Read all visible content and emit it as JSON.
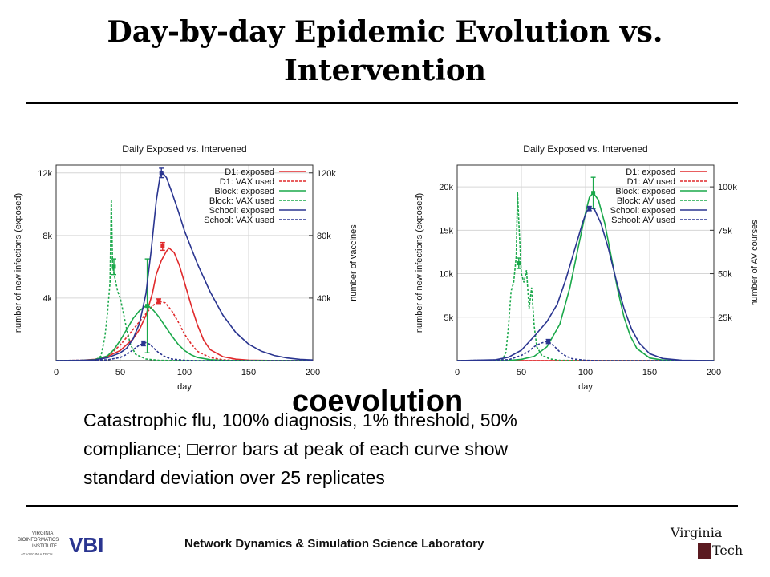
{
  "slide": {
    "title": "Day-by-day Epidemic Evolution vs. Intervention",
    "caption_line1": "Catastrophic flu, 100% diagnosis, 1% threshold, 50%",
    "caption_line2": "compliance; □error bars at peak of each curve show",
    "caption_line3": "standard deviation over 25 replicates",
    "overlay_word": "coevolution",
    "footer": "Network Dynamics & Simulation Science Laboratory",
    "logo_left_text": "VIRGINIA BIOINFORMATICS INSTITUTE AT VIRGINIA TECH",
    "logo_left_mark": "VBI",
    "logo_right_text_1": "Virginia",
    "logo_right_text_2": "Tech"
  },
  "colors": {
    "red": "#e0292b",
    "green": "#1aa84a",
    "blue": "#2a3590"
  },
  "chart_data": [
    {
      "type": "line",
      "title": "Daily Exposed vs. Intervened",
      "xlabel": "day",
      "ylabel": "number of new infections (exposed)",
      "y2label": "number of vaccines",
      "xlim": [
        0,
        200
      ],
      "ylim": [
        0,
        12500
      ],
      "y2lim": [
        0,
        125000
      ],
      "x_ticks": [
        0,
        50,
        100,
        150,
        200
      ],
      "y_ticks": [
        {
          "v": 4000,
          "l": "4k"
        },
        {
          "v": 8000,
          "l": "8k"
        },
        {
          "v": 12000,
          "l": "12k"
        }
      ],
      "y2_ticks": [
        {
          "v": 40000,
          "l": "40k"
        },
        {
          "v": 80000,
          "l": "80k"
        },
        {
          "v": 120000,
          "l": "120k"
        }
      ],
      "grid": true,
      "legend_position": "top-right",
      "series": [
        {
          "name": "D1: exposed",
          "color": "red",
          "dashed": false,
          "axis": "left",
          "points": [
            [
              0,
              0
            ],
            [
              20,
              20
            ],
            [
              30,
              80
            ],
            [
              40,
              260
            ],
            [
              50,
              650
            ],
            [
              60,
              1400
            ],
            [
              65,
              2000
            ],
            [
              70,
              2900
            ],
            [
              75,
              4300
            ],
            [
              78,
              5500
            ],
            [
              82,
              6400
            ],
            [
              86,
              7000
            ],
            [
              88,
              7200
            ],
            [
              92,
              6900
            ],
            [
              96,
              6100
            ],
            [
              100,
              5000
            ],
            [
              105,
              3600
            ],
            [
              110,
              2300
            ],
            [
              115,
              1300
            ],
            [
              120,
              700
            ],
            [
              130,
              250
            ],
            [
              140,
              90
            ],
            [
              150,
              30
            ],
            [
              170,
              5
            ],
            [
              200,
              0
            ]
          ],
          "error_bar": {
            "x": 83,
            "y": 7300,
            "sd": 250
          }
        },
        {
          "name": "D1: VAX used",
          "color": "red",
          "dashed": true,
          "axis": "right",
          "points": [
            [
              0,
              0
            ],
            [
              30,
              200
            ],
            [
              40,
              2500
            ],
            [
              50,
              10000
            ],
            [
              60,
              20000
            ],
            [
              70,
              30000
            ],
            [
              75,
              35000
            ],
            [
              80,
              38000
            ],
            [
              85,
              37000
            ],
            [
              90,
              32000
            ],
            [
              95,
              25000
            ],
            [
              100,
              17000
            ],
            [
              105,
              11000
            ],
            [
              110,
              6000
            ],
            [
              120,
              2000
            ],
            [
              130,
              500
            ],
            [
              140,
              100
            ],
            [
              160,
              0
            ],
            [
              200,
              0
            ]
          ],
          "error_bar": {
            "x": 80,
            "y": 38000,
            "sd": 1500
          }
        },
        {
          "name": "Block: exposed",
          "color": "green",
          "dashed": false,
          "axis": "left",
          "points": [
            [
              0,
              0
            ],
            [
              20,
              15
            ],
            [
              30,
              60
            ],
            [
              40,
              300
            ],
            [
              45,
              700
            ],
            [
              50,
              1300
            ],
            [
              55,
              2000
            ],
            [
              60,
              2700
            ],
            [
              65,
              3200
            ],
            [
              70,
              3500
            ],
            [
              72,
              3500
            ],
            [
              76,
              3200
            ],
            [
              80,
              2800
            ],
            [
              85,
              2200
            ],
            [
              90,
              1600
            ],
            [
              95,
              1050
            ],
            [
              100,
              650
            ],
            [
              105,
              380
            ],
            [
              110,
              200
            ],
            [
              120,
              60
            ],
            [
              130,
              15
            ],
            [
              150,
              0
            ],
            [
              200,
              0
            ]
          ],
          "error_bar": {
            "x": 71,
            "y": 3500,
            "sd": 3000
          }
        },
        {
          "name": "Block: VAX used",
          "color": "green",
          "dashed": true,
          "axis": "right",
          "points": [
            [
              0,
              0
            ],
            [
              30,
              0
            ],
            [
              35,
              3000
            ],
            [
              38,
              15000
            ],
            [
              40,
              30000
            ],
            [
              41,
              40000
            ],
            [
              42,
              50000
            ],
            [
              43,
              103000
            ],
            [
              44,
              60000
            ],
            [
              46,
              52000
            ],
            [
              48,
              44000
            ],
            [
              50,
              40000
            ],
            [
              52,
              32000
            ],
            [
              55,
              20000
            ],
            [
              58,
              10000
            ],
            [
              62,
              4000
            ],
            [
              70,
              1000
            ],
            [
              80,
              200
            ],
            [
              100,
              0
            ],
            [
              200,
              0
            ]
          ],
          "error_bar": {
            "x": 45,
            "y": 60000,
            "sd": 5000
          }
        },
        {
          "name": "School: exposed",
          "color": "blue",
          "dashed": false,
          "axis": "left",
          "points": [
            [
              0,
              0
            ],
            [
              20,
              10
            ],
            [
              30,
              50
            ],
            [
              40,
              180
            ],
            [
              50,
              500
            ],
            [
              55,
              800
            ],
            [
              60,
              1400
            ],
            [
              65,
              2400
            ],
            [
              70,
              4300
            ],
            [
              74,
              7000
            ],
            [
              78,
              10200
            ],
            [
              81,
              11800
            ],
            [
              83,
              12000
            ],
            [
              86,
              11700
            ],
            [
              90,
              10800
            ],
            [
              95,
              9600
            ],
            [
              100,
              8300
            ],
            [
              110,
              6200
            ],
            [
              120,
              4400
            ],
            [
              130,
              2900
            ],
            [
              140,
              1800
            ],
            [
              150,
              1050
            ],
            [
              160,
              600
            ],
            [
              170,
              330
            ],
            [
              180,
              170
            ],
            [
              190,
              80
            ],
            [
              200,
              40
            ]
          ],
          "error_bar": {
            "x": 82,
            "y": 12000,
            "sd": 300
          }
        },
        {
          "name": "School: VAX used",
          "color": "blue",
          "dashed": true,
          "axis": "right",
          "points": [
            [
              0,
              0
            ],
            [
              40,
              500
            ],
            [
              50,
              2000
            ],
            [
              55,
              4000
            ],
            [
              60,
              7000
            ],
            [
              65,
              10000
            ],
            [
              68,
              11000
            ],
            [
              70,
              11500
            ],
            [
              73,
              10500
            ],
            [
              76,
              8000
            ],
            [
              80,
              5000
            ],
            [
              85,
              2500
            ],
            [
              90,
              1000
            ],
            [
              100,
              200
            ],
            [
              110,
              0
            ],
            [
              200,
              0
            ]
          ],
          "error_bar": {
            "x": 68,
            "y": 11000,
            "sd": 1500
          }
        }
      ]
    },
    {
      "type": "line",
      "title": "Daily Exposed vs. Intervened",
      "xlabel": "day",
      "ylabel": "number of new infections (exposed)",
      "y2label": "number of AV courses",
      "xlim": [
        0,
        200
      ],
      "ylim": [
        0,
        22500
      ],
      "y2lim": [
        0,
        112500
      ],
      "x_ticks": [
        0,
        50,
        100,
        150,
        200
      ],
      "y_ticks": [
        {
          "v": 5000,
          "l": "5k"
        },
        {
          "v": 10000,
          "l": "10k"
        },
        {
          "v": 15000,
          "l": "15k"
        },
        {
          "v": 20000,
          "l": "20k"
        }
      ],
      "y2_ticks": [
        {
          "v": 25000,
          "l": "25k"
        },
        {
          "v": 50000,
          "l": "50k"
        },
        {
          "v": 75000,
          "l": "75k"
        },
        {
          "v": 100000,
          "l": "100k"
        }
      ],
      "grid": true,
      "legend_position": "top-right",
      "series": [
        {
          "name": "D1: exposed",
          "color": "red",
          "dashed": false,
          "axis": "left",
          "points": [
            [
              0,
              0
            ],
            [
              200,
              0
            ]
          ]
        },
        {
          "name": "D1: AV used",
          "color": "red",
          "dashed": true,
          "axis": "right",
          "points": [
            [
              0,
              0
            ],
            [
              200,
              0
            ]
          ]
        },
        {
          "name": "Block: exposed",
          "color": "green",
          "dashed": false,
          "axis": "left",
          "points": [
            [
              0,
              0
            ],
            [
              40,
              20
            ],
            [
              50,
              150
            ],
            [
              60,
              500
            ],
            [
              70,
              1600
            ],
            [
              80,
              4200
            ],
            [
              88,
              8500
            ],
            [
              95,
              13500
            ],
            [
              100,
              17000
            ],
            [
              103,
              18800
            ],
            [
              106,
              19300
            ],
            [
              110,
              18500
            ],
            [
              115,
              15800
            ],
            [
              120,
              12000
            ],
            [
              125,
              8200
            ],
            [
              130,
              5000
            ],
            [
              135,
              2800
            ],
            [
              140,
              1400
            ],
            [
              150,
              300
            ],
            [
              160,
              60
            ],
            [
              175,
              5
            ],
            [
              200,
              0
            ]
          ],
          "error_bar": {
            "x": 106,
            "y": 19300,
            "sd": 1800
          }
        },
        {
          "name": "Block: AV used",
          "color": "green",
          "dashed": true,
          "axis": "right",
          "points": [
            [
              0,
              0
            ],
            [
              35,
              0
            ],
            [
              38,
              5000
            ],
            [
              40,
              20000
            ],
            [
              42,
              40000
            ],
            [
              44,
              45000
            ],
            [
              46,
              60000
            ],
            [
              47,
              97000
            ],
            [
              48,
              80000
            ],
            [
              50,
              50000
            ],
            [
              52,
              45000
            ],
            [
              54,
              52000
            ],
            [
              56,
              30000
            ],
            [
              58,
              42000
            ],
            [
              60,
              20000
            ],
            [
              62,
              8000
            ],
            [
              66,
              3000
            ],
            [
              72,
              1000
            ],
            [
              80,
              200
            ],
            [
              100,
              0
            ],
            [
              200,
              0
            ]
          ],
          "error_bar": {
            "x": 48,
            "y": 56000,
            "sd": 3000
          }
        },
        {
          "name": "School: exposed",
          "color": "blue",
          "dashed": false,
          "axis": "left",
          "points": [
            [
              0,
              0
            ],
            [
              30,
              100
            ],
            [
              40,
              400
            ],
            [
              50,
              1200
            ],
            [
              60,
              2800
            ],
            [
              70,
              4500
            ],
            [
              78,
              6500
            ],
            [
              85,
              9500
            ],
            [
              92,
              13000
            ],
            [
              98,
              16000
            ],
            [
              101,
              17200
            ],
            [
              104,
              17600
            ],
            [
              107,
              17400
            ],
            [
              112,
              15800
            ],
            [
              118,
              12800
            ],
            [
              124,
              9200
            ],
            [
              130,
              6000
            ],
            [
              136,
              3600
            ],
            [
              142,
              2000
            ],
            [
              150,
              800
            ],
            [
              160,
              250
            ],
            [
              175,
              40
            ],
            [
              200,
              0
            ]
          ],
          "error_bar": {
            "x": 103,
            "y": 17500,
            "sd": 250
          }
        },
        {
          "name": "School: AV used",
          "color": "blue",
          "dashed": true,
          "axis": "right",
          "points": [
            [
              0,
              0
            ],
            [
              40,
              500
            ],
            [
              50,
              3000
            ],
            [
              55,
              5000
            ],
            [
              60,
              8000
            ],
            [
              65,
              10000
            ],
            [
              70,
              11000
            ],
            [
              73,
              10000
            ],
            [
              76,
              8000
            ],
            [
              80,
              5000
            ],
            [
              85,
              2500
            ],
            [
              90,
              1000
            ],
            [
              100,
              200
            ],
            [
              110,
              0
            ],
            [
              200,
              0
            ]
          ],
          "error_bar": {
            "x": 71,
            "y": 11000,
            "sd": 1200
          }
        }
      ]
    }
  ]
}
